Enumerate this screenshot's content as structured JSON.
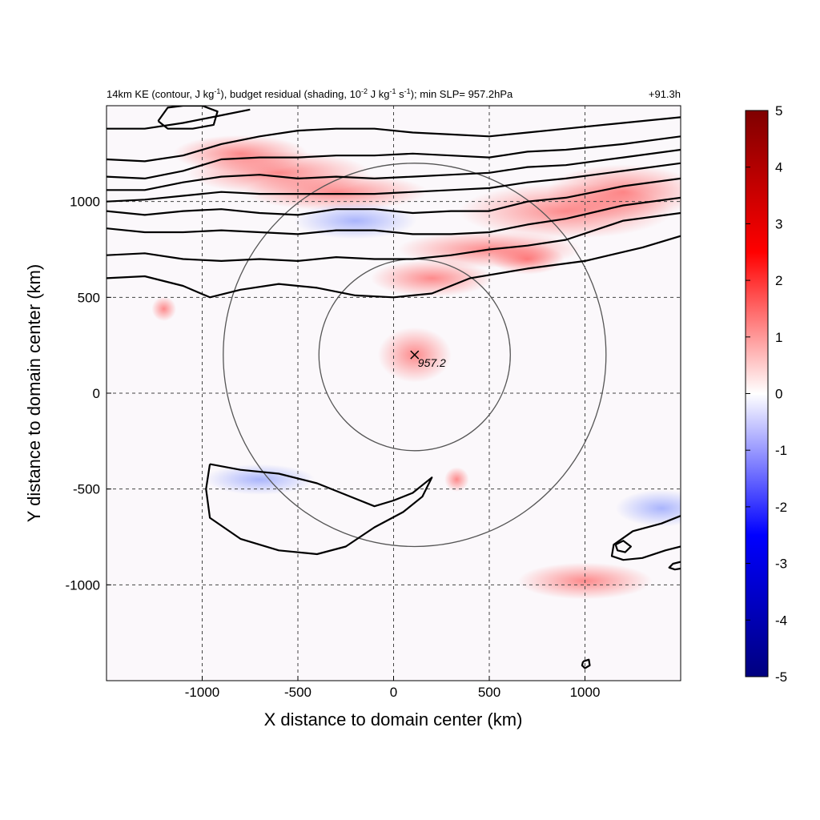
{
  "chart_data": {
    "type": "heatmap",
    "title_left": "14km KE (contour, J kg",
    "title_left_sup1": "-1",
    "title_left_mid": "), budget residual (shading, 10",
    "title_left_sup2": "-2",
    "title_left_mid2": " J kg",
    "title_left_sup3": "-1",
    "title_left_mid3": " s",
    "title_left_sup4": "-1",
    "title_left_end": "); min SLP= 957.2hPa",
    "title_right": "+91.3h",
    "xlabel": "X distance to domain center (km)",
    "ylabel": "Y distance to domain center (km)",
    "xlim": [
      -1500,
      1500
    ],
    "ylim": [
      -1500,
      1500
    ],
    "xticks": [
      -1000,
      -500,
      0,
      500,
      1000
    ],
    "yticks": [
      -1000,
      -500,
      0,
      500,
      1000
    ],
    "grid": true,
    "colorbar": {
      "min": -5,
      "max": 5,
      "ticks": [
        5,
        4,
        3,
        2,
        1,
        0,
        -1,
        -2,
        -3,
        -4,
        -5
      ],
      "colors": [
        "#00007f",
        "#0000ff",
        "#ffffff",
        "#ff0000",
        "#7f0000"
      ]
    },
    "storm_center": {
      "x": 110,
      "y": 200,
      "label": "957.2"
    },
    "range_circles_km": [
      500,
      1000
    ],
    "ke_contours": [
      [
        [
          -1500,
          600
        ],
        [
          -1300,
          610
        ],
        [
          -1100,
          560
        ],
        [
          -960,
          500
        ],
        [
          -800,
          540
        ],
        [
          -600,
          570
        ],
        [
          -400,
          550
        ],
        [
          -200,
          510
        ],
        [
          0,
          500
        ],
        [
          200,
          520
        ],
        [
          400,
          600
        ],
        [
          700,
          650
        ],
        [
          1000,
          690
        ],
        [
          1300,
          760
        ],
        [
          1500,
          820
        ]
      ],
      [
        [
          -1500,
          720
        ],
        [
          -1300,
          730
        ],
        [
          -1100,
          700
        ],
        [
          -900,
          690
        ],
        [
          -700,
          700
        ],
        [
          -500,
          690
        ],
        [
          -300,
          710
        ],
        [
          -100,
          700
        ],
        [
          100,
          700
        ],
        [
          300,
          720
        ],
        [
          500,
          750
        ],
        [
          700,
          770
        ],
        [
          900,
          800
        ],
        [
          1200,
          900
        ],
        [
          1500,
          940
        ]
      ],
      [
        [
          -1500,
          860
        ],
        [
          -1300,
          840
        ],
        [
          -1100,
          840
        ],
        [
          -900,
          850
        ],
        [
          -700,
          840
        ],
        [
          -500,
          830
        ],
        [
          -300,
          850
        ],
        [
          -100,
          850
        ],
        [
          100,
          830
        ],
        [
          300,
          830
        ],
        [
          500,
          840
        ],
        [
          700,
          880
        ],
        [
          900,
          910
        ],
        [
          1200,
          980
        ],
        [
          1500,
          1020
        ]
      ],
      [
        [
          -1500,
          950
        ],
        [
          -1300,
          930
        ],
        [
          -1100,
          950
        ],
        [
          -900,
          960
        ],
        [
          -700,
          940
        ],
        [
          -500,
          930
        ],
        [
          -300,
          960
        ],
        [
          -100,
          960
        ],
        [
          100,
          940
        ],
        [
          300,
          950
        ],
        [
          500,
          950
        ],
        [
          700,
          1000
        ],
        [
          900,
          1020
        ],
        [
          1200,
          1080
        ],
        [
          1500,
          1120
        ]
      ],
      [
        [
          -1500,
          1000
        ],
        [
          -1300,
          1010
        ],
        [
          -1100,
          1030
        ],
        [
          -900,
          1050
        ],
        [
          -700,
          1040
        ],
        [
          -500,
          1040
        ],
        [
          -300,
          1040
        ],
        [
          -100,
          1040
        ],
        [
          100,
          1050
        ],
        [
          300,
          1060
        ],
        [
          500,
          1070
        ],
        [
          700,
          1100
        ],
        [
          900,
          1120
        ],
        [
          1200,
          1160
        ],
        [
          1500,
          1200
        ]
      ],
      [
        [
          -1500,
          1060
        ],
        [
          -1300,
          1060
        ],
        [
          -1100,
          1100
        ],
        [
          -900,
          1130
        ],
        [
          -700,
          1140
        ],
        [
          -500,
          1120
        ],
        [
          -300,
          1130
        ],
        [
          -100,
          1120
        ],
        [
          100,
          1130
        ],
        [
          300,
          1140
        ],
        [
          500,
          1150
        ],
        [
          700,
          1180
        ],
        [
          900,
          1190
        ],
        [
          1200,
          1230
        ],
        [
          1500,
          1270
        ]
      ],
      [
        [
          -1500,
          1130
        ],
        [
          -1300,
          1120
        ],
        [
          -1100,
          1160
        ],
        [
          -900,
          1220
        ],
        [
          -700,
          1230
        ],
        [
          -500,
          1230
        ],
        [
          -300,
          1240
        ],
        [
          -100,
          1240
        ],
        [
          100,
          1250
        ],
        [
          300,
          1240
        ],
        [
          500,
          1230
        ],
        [
          700,
          1260
        ],
        [
          900,
          1270
        ],
        [
          1200,
          1300
        ],
        [
          1500,
          1340
        ]
      ],
      [
        [
          -1500,
          1220
        ],
        [
          -1300,
          1210
        ],
        [
          -1100,
          1240
        ],
        [
          -900,
          1300
        ],
        [
          -700,
          1340
        ],
        [
          -500,
          1370
        ],
        [
          -300,
          1380
        ],
        [
          -100,
          1380
        ],
        [
          100,
          1360
        ],
        [
          300,
          1350
        ],
        [
          500,
          1340
        ],
        [
          700,
          1360
        ],
        [
          900,
          1380
        ],
        [
          1200,
          1410
        ],
        [
          1500,
          1440
        ]
      ],
      [
        [
          -1500,
          1380
        ],
        [
          -1300,
          1380
        ],
        [
          -1100,
          1410
        ],
        [
          -900,
          1450
        ],
        [
          -750,
          1480
        ]
      ],
      [
        [
          -1230,
          1420
        ],
        [
          -1180,
          1490
        ],
        [
          -1100,
          1500
        ],
        [
          -1000,
          1500
        ],
        [
          -920,
          1470
        ],
        [
          -940,
          1400
        ],
        [
          -1050,
          1380
        ],
        [
          -1180,
          1380
        ],
        [
          -1230,
          1420
        ]
      ],
      [
        [
          -960,
          -370
        ],
        [
          -800,
          -400
        ],
        [
          -600,
          -420
        ],
        [
          -400,
          -470
        ],
        [
          -200,
          -550
        ],
        [
          -100,
          -590
        ],
        [
          0,
          -560
        ],
        [
          100,
          -520
        ],
        [
          200,
          -440
        ],
        [
          150,
          -540
        ],
        [
          50,
          -620
        ],
        [
          -100,
          -700
        ],
        [
          -250,
          -800
        ],
        [
          -400,
          -840
        ],
        [
          -600,
          -820
        ],
        [
          -800,
          -760
        ],
        [
          -960,
          -650
        ],
        [
          -980,
          -500
        ],
        [
          -960,
          -370
        ]
      ],
      [
        [
          1500,
          -640
        ],
        [
          1400,
          -680
        ],
        [
          1250,
          -720
        ],
        [
          1150,
          -790
        ],
        [
          1140,
          -850
        ],
        [
          1200,
          -870
        ],
        [
          1300,
          -860
        ],
        [
          1420,
          -820
        ],
        [
          1500,
          -800
        ]
      ],
      [
        [
          1160,
          -790
        ],
        [
          1200,
          -770
        ],
        [
          1240,
          -800
        ],
        [
          1210,
          -830
        ],
        [
          1170,
          -820
        ],
        [
          1160,
          -790
        ]
      ],
      [
        [
          1500,
          -880
        ],
        [
          1460,
          -890
        ],
        [
          1440,
          -910
        ],
        [
          1470,
          -920
        ],
        [
          1500,
          -915
        ]
      ],
      [
        [
          990,
          -1400
        ],
        [
          1020,
          -1390
        ],
        [
          1025,
          -1420
        ],
        [
          1000,
          -1435
        ],
        [
          985,
          -1420
        ],
        [
          990,
          -1400
        ]
      ]
    ]
  }
}
